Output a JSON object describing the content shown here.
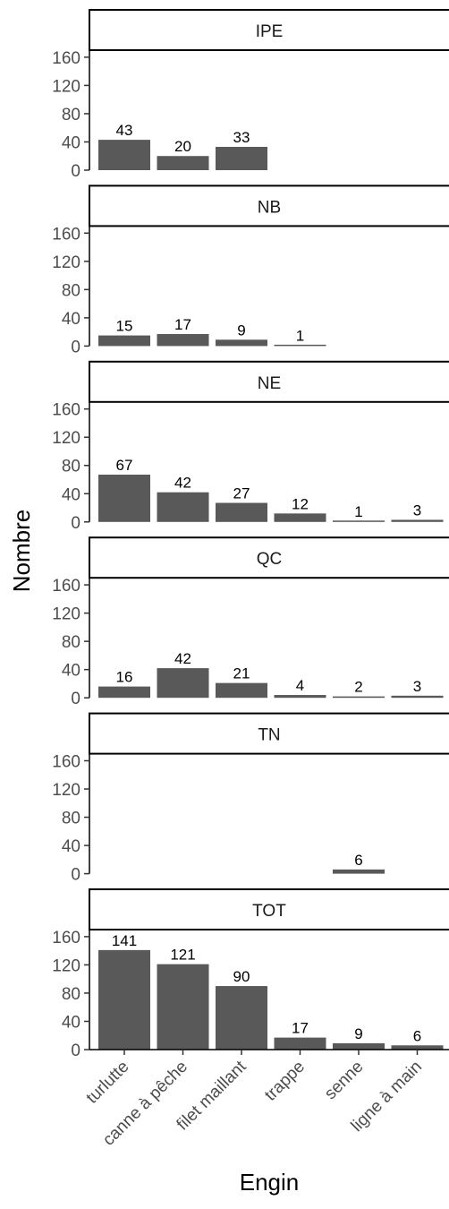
{
  "chart_data": {
    "type": "bar",
    "xlabel": "Engin",
    "ylabel": "Nombre",
    "ylim": [
      0,
      170
    ],
    "yticks": [
      0,
      40,
      80,
      120,
      160
    ],
    "categories": [
      "turlutte",
      "canne à pêche",
      "filet maillant",
      "trappe",
      "senne",
      "ligne à main"
    ],
    "bar_color": "#595959",
    "strip_fill": "#ffffff",
    "grid": false,
    "legend": "none",
    "facets": [
      {
        "label": "IPE",
        "values": [
          43,
          20,
          33,
          null,
          null,
          null
        ]
      },
      {
        "label": "NB",
        "values": [
          15,
          17,
          9,
          1,
          null,
          null
        ]
      },
      {
        "label": "NE",
        "values": [
          67,
          42,
          27,
          12,
          1,
          3
        ]
      },
      {
        "label": "QC",
        "values": [
          16,
          42,
          21,
          4,
          2,
          3
        ]
      },
      {
        "label": "TN",
        "values": [
          null,
          null,
          null,
          null,
          6,
          null
        ]
      },
      {
        "label": "TOT",
        "values": [
          141,
          121,
          90,
          17,
          9,
          6
        ]
      }
    ]
  }
}
